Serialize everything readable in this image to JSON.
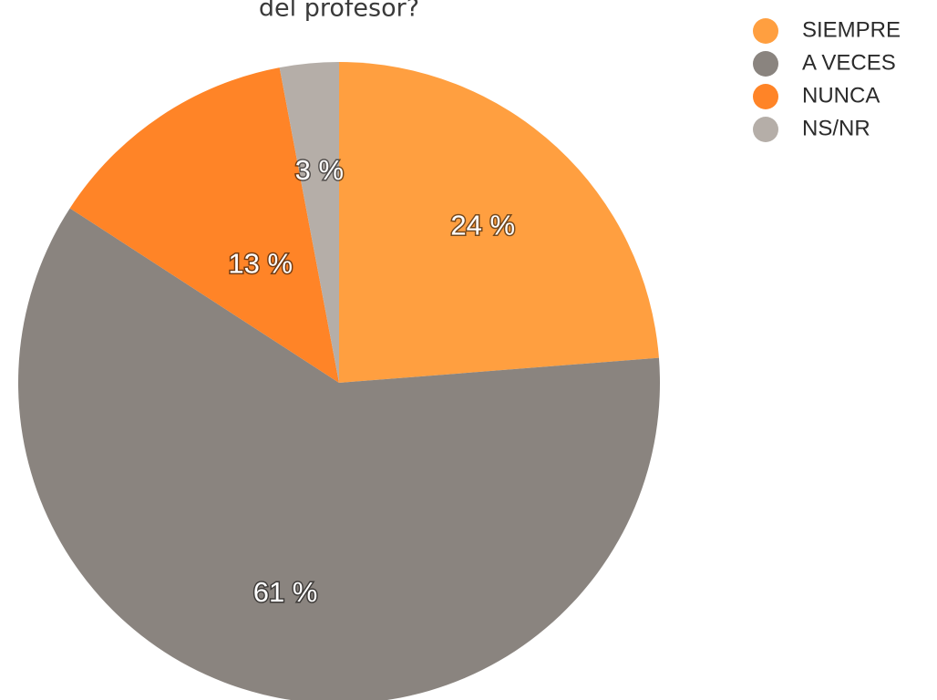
{
  "chart_data": {
    "type": "pie",
    "title": "del profesor?",
    "categories": [
      "SIEMPRE",
      "A VECES",
      "NUNCA",
      "NS/NR"
    ],
    "values": [
      24,
      61,
      13,
      3
    ],
    "value_labels": [
      "24 %",
      "61 %",
      "13 %",
      "3 %"
    ],
    "colors": [
      "#ff9f40",
      "#8a847f",
      "#ff8427",
      "#b5aea8"
    ],
    "legend": "top-right"
  }
}
